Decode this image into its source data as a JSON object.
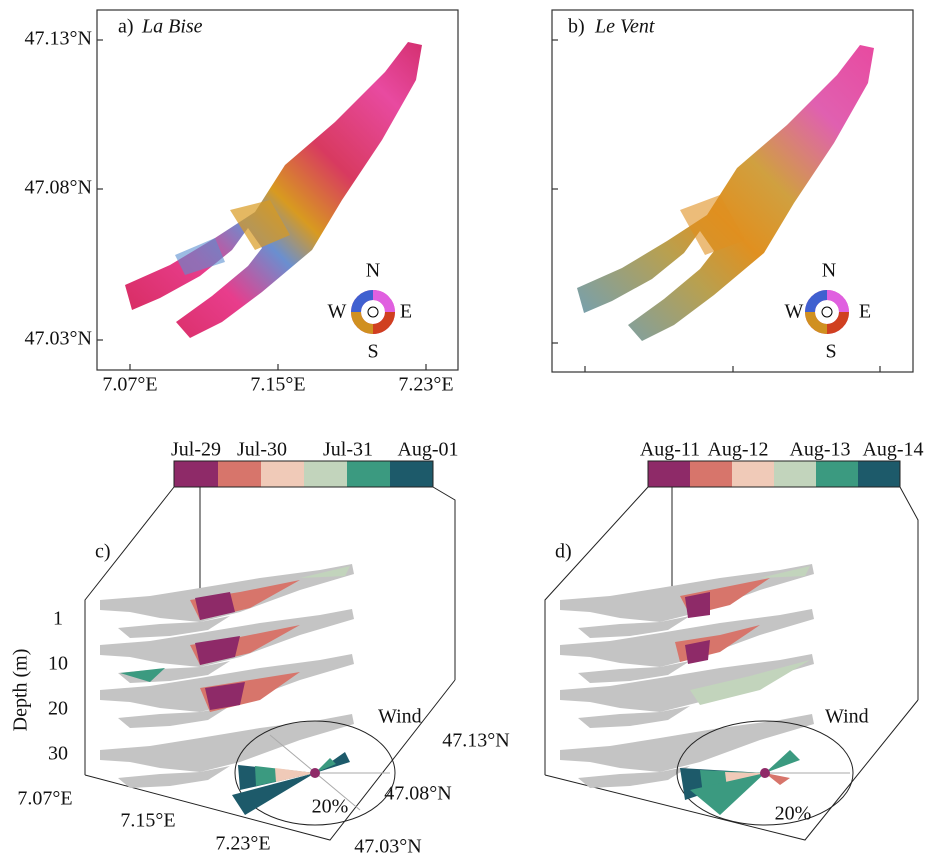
{
  "panels": [
    {
      "label": "a)",
      "title": "La Bise",
      "yticks": [
        "47.13°N",
        "47.08°N",
        "47.03°N"
      ],
      "xticks": [
        "7.07°E",
        "7.15°E",
        "7.23°E"
      ],
      "compass": [
        "N",
        "E",
        "S",
        "W"
      ]
    },
    {
      "label": "b)",
      "title": "Le Vent",
      "compass": [
        "N",
        "E",
        "S",
        "W"
      ]
    },
    {
      "label": "c)",
      "colorbar": [
        "Jul-29",
        "Jul-30",
        "Jul-31",
        "Aug-01"
      ],
      "depth_label": "Depth (m)",
      "depths": [
        1,
        10,
        20,
        30
      ],
      "lon_ticks": [
        "7.07°E",
        "7.15°E",
        "7.23°E"
      ],
      "lat_ticks": [
        "47.13°N",
        "47.08°N",
        "47.03°N"
      ],
      "wind_label": "Wind",
      "wind_scale": "20%"
    },
    {
      "label": "d)",
      "colorbar": [
        "Aug-11",
        "Aug-12",
        "Aug-13",
        "Aug-14"
      ],
      "wind_label": "Wind",
      "wind_scale": "20%"
    }
  ]
}
